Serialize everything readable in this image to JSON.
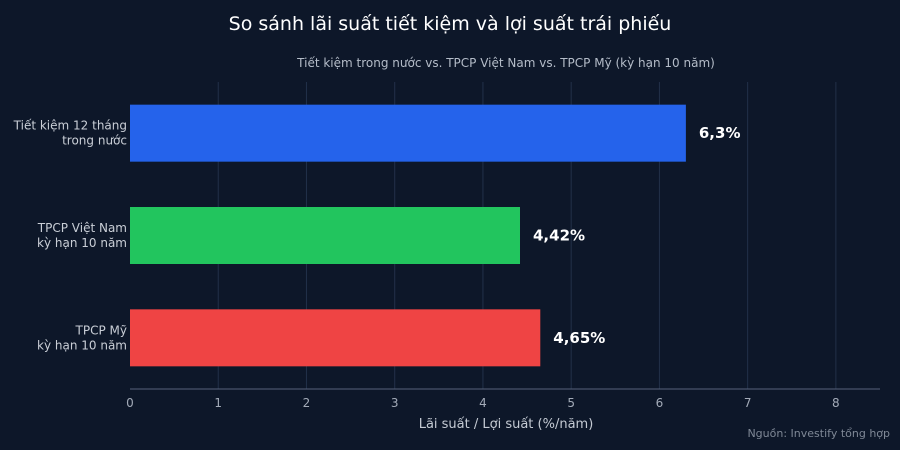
{
  "chart_data": {
    "type": "bar",
    "orientation": "horizontal",
    "title": "So sánh lãi suất tiết kiệm và lợi suất trái phiếu",
    "subtitle": "Tiết kiệm trong nước vs. TPCP Việt Nam vs. TPCP Mỹ (kỳ hạn 10 năm)",
    "categories": [
      [
        "Tiết kiệm 12 tháng",
        "trong nước"
      ],
      [
        "TPCP Việt Nam",
        "kỳ hạn 10 năm"
      ],
      [
        "TPCP Mỹ",
        "kỳ hạn 10 năm"
      ]
    ],
    "values": [
      6.3,
      4.42,
      4.65
    ],
    "value_labels": [
      "6,3%",
      "4,42%",
      "4,65%"
    ],
    "colors": [
      "#2563eb",
      "#22c55e",
      "#ef4444"
    ],
    "xlabel": "Lãi suất / Lợi suất (%/năm)",
    "xlim": [
      0,
      8.5
    ],
    "xticks": [
      0,
      1,
      2,
      3,
      4,
      5,
      6,
      7,
      8
    ],
    "grid": true,
    "source": "Nguồn: Investify tổng hợp"
  }
}
